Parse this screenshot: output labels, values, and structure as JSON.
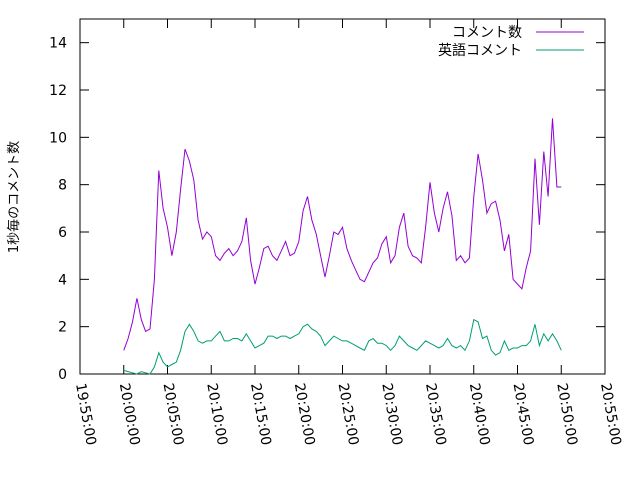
{
  "chart_data": {
    "type": "line",
    "title": "",
    "xlabel": "",
    "ylabel": "1秒毎のコメント数",
    "xlim": [
      "19:55:00",
      "20:55:00"
    ],
    "ylim": [
      0,
      15
    ],
    "grid": false,
    "legend": "top-right",
    "x_ticks": [
      "19:55:00",
      "20:00:00",
      "20:05:00",
      "20:10:00",
      "20:15:00",
      "20:20:00",
      "20:25:00",
      "20:30:00",
      "20:35:00",
      "20:40:00",
      "20:45:00",
      "20:50:00",
      "20:55:00"
    ],
    "y_ticks": [
      "0",
      "2",
      "4",
      "6",
      "8",
      "10",
      "12",
      "14"
    ],
    "series": [
      {
        "name": "コメント数",
        "color": "#9400d3",
        "points": [
          [
            "20:00:00",
            1.0
          ],
          [
            "20:00:30",
            1.5
          ],
          [
            "20:01:00",
            2.2
          ],
          [
            "20:01:30",
            3.2
          ],
          [
            "20:02:00",
            2.3
          ],
          [
            "20:02:30",
            1.8
          ],
          [
            "20:03:00",
            1.9
          ],
          [
            "20:03:30",
            4.0
          ],
          [
            "20:04:00",
            8.6
          ],
          [
            "20:04:30",
            7.0
          ],
          [
            "20:05:00",
            6.2
          ],
          [
            "20:05:30",
            5.0
          ],
          [
            "20:06:00",
            6.0
          ],
          [
            "20:06:30",
            7.8
          ],
          [
            "20:07:00",
            9.5
          ],
          [
            "20:07:30",
            9.0
          ],
          [
            "20:08:00",
            8.2
          ],
          [
            "20:08:30",
            6.5
          ],
          [
            "20:09:00",
            5.7
          ],
          [
            "20:09:30",
            6.0
          ],
          [
            "20:10:00",
            5.8
          ],
          [
            "20:10:30",
            5.0
          ],
          [
            "20:11:00",
            4.8
          ],
          [
            "20:11:30",
            5.1
          ],
          [
            "20:12:00",
            5.3
          ],
          [
            "20:12:30",
            5.0
          ],
          [
            "20:13:00",
            5.2
          ],
          [
            "20:13:30",
            5.6
          ],
          [
            "20:14:00",
            6.6
          ],
          [
            "20:14:30",
            4.8
          ],
          [
            "20:15:00",
            3.8
          ],
          [
            "20:15:30",
            4.5
          ],
          [
            "20:16:00",
            5.3
          ],
          [
            "20:16:30",
            5.4
          ],
          [
            "20:17:00",
            5.0
          ],
          [
            "20:17:30",
            4.8
          ],
          [
            "20:18:00",
            5.2
          ],
          [
            "20:18:30",
            5.6
          ],
          [
            "20:19:00",
            5.0
          ],
          [
            "20:19:30",
            5.1
          ],
          [
            "20:20:00",
            5.6
          ],
          [
            "20:20:30",
            6.9
          ],
          [
            "20:21:00",
            7.5
          ],
          [
            "20:21:30",
            6.5
          ],
          [
            "20:22:00",
            5.9
          ],
          [
            "20:22:30",
            5.0
          ],
          [
            "20:23:00",
            4.1
          ],
          [
            "20:23:30",
            5.0
          ],
          [
            "20:24:00",
            6.0
          ],
          [
            "20:24:30",
            5.9
          ],
          [
            "20:25:00",
            6.2
          ],
          [
            "20:25:30",
            5.3
          ],
          [
            "20:26:00",
            4.8
          ],
          [
            "20:26:30",
            4.4
          ],
          [
            "20:27:00",
            4.0
          ],
          [
            "20:27:30",
            3.9
          ],
          [
            "20:28:00",
            4.3
          ],
          [
            "20:28:30",
            4.7
          ],
          [
            "20:29:00",
            4.9
          ],
          [
            "20:29:30",
            5.5
          ],
          [
            "20:30:00",
            5.8
          ],
          [
            "20:30:30",
            4.7
          ],
          [
            "20:31:00",
            5.0
          ],
          [
            "20:31:30",
            6.2
          ],
          [
            "20:32:00",
            6.8
          ],
          [
            "20:32:30",
            5.4
          ],
          [
            "20:33:00",
            5.0
          ],
          [
            "20:33:30",
            4.9
          ],
          [
            "20:34:00",
            4.7
          ],
          [
            "20:34:30",
            6.2
          ],
          [
            "20:35:00",
            8.1
          ],
          [
            "20:35:30",
            6.8
          ],
          [
            "20:36:00",
            6.0
          ],
          [
            "20:36:30",
            7.0
          ],
          [
            "20:37:00",
            7.7
          ],
          [
            "20:37:30",
            6.7
          ],
          [
            "20:38:00",
            4.8
          ],
          [
            "20:38:30",
            5.0
          ],
          [
            "20:39:00",
            4.7
          ],
          [
            "20:39:30",
            4.9
          ],
          [
            "20:40:00",
            7.5
          ],
          [
            "20:40:30",
            9.3
          ],
          [
            "20:41:00",
            8.2
          ],
          [
            "20:41:30",
            6.8
          ],
          [
            "20:42:00",
            7.2
          ],
          [
            "20:42:30",
            7.3
          ],
          [
            "20:43:00",
            6.5
          ],
          [
            "20:43:30",
            5.2
          ],
          [
            "20:44:00",
            5.9
          ],
          [
            "20:44:30",
            4.0
          ],
          [
            "20:45:00",
            3.8
          ],
          [
            "20:45:30",
            3.6
          ],
          [
            "20:46:00",
            4.5
          ],
          [
            "20:46:30",
            5.2
          ],
          [
            "20:47:00",
            9.1
          ],
          [
            "20:47:30",
            6.3
          ],
          [
            "20:48:00",
            9.4
          ],
          [
            "20:48:30",
            7.5
          ],
          [
            "20:49:00",
            10.8
          ],
          [
            "20:49:30",
            7.9
          ],
          [
            "20:50:00",
            7.9
          ]
        ]
      },
      {
        "name": "英語コメント",
        "color": "#009e73",
        "points": [
          [
            "20:00:00",
            0.15
          ],
          [
            "20:00:30",
            0.1
          ],
          [
            "20:01:00",
            0.05
          ],
          [
            "20:01:30",
            0.0
          ],
          [
            "20:02:00",
            0.1
          ],
          [
            "20:02:30",
            0.05
          ],
          [
            "20:03:00",
            0.0
          ],
          [
            "20:03:30",
            0.3
          ],
          [
            "20:04:00",
            0.9
          ],
          [
            "20:04:30",
            0.5
          ],
          [
            "20:05:00",
            0.3
          ],
          [
            "20:05:30",
            0.4
          ],
          [
            "20:06:00",
            0.5
          ],
          [
            "20:06:30",
            1.0
          ],
          [
            "20:07:00",
            1.8
          ],
          [
            "20:07:30",
            2.1
          ],
          [
            "20:08:00",
            1.8
          ],
          [
            "20:08:30",
            1.4
          ],
          [
            "20:09:00",
            1.3
          ],
          [
            "20:09:30",
            1.4
          ],
          [
            "20:10:00",
            1.4
          ],
          [
            "20:10:30",
            1.6
          ],
          [
            "20:11:00",
            1.8
          ],
          [
            "20:11:30",
            1.4
          ],
          [
            "20:12:00",
            1.4
          ],
          [
            "20:12:30",
            1.5
          ],
          [
            "20:13:00",
            1.5
          ],
          [
            "20:13:30",
            1.4
          ],
          [
            "20:14:00",
            1.7
          ],
          [
            "20:14:30",
            1.4
          ],
          [
            "20:15:00",
            1.1
          ],
          [
            "20:15:30",
            1.2
          ],
          [
            "20:16:00",
            1.3
          ],
          [
            "20:16:30",
            1.6
          ],
          [
            "20:17:00",
            1.6
          ],
          [
            "20:17:30",
            1.5
          ],
          [
            "20:18:00",
            1.6
          ],
          [
            "20:18:30",
            1.6
          ],
          [
            "20:19:00",
            1.5
          ],
          [
            "20:19:30",
            1.6
          ],
          [
            "20:20:00",
            1.7
          ],
          [
            "20:20:30",
            2.0
          ],
          [
            "20:21:00",
            2.1
          ],
          [
            "20:21:30",
            1.9
          ],
          [
            "20:22:00",
            1.8
          ],
          [
            "20:22:30",
            1.6
          ],
          [
            "20:23:00",
            1.2
          ],
          [
            "20:23:30",
            1.4
          ],
          [
            "20:24:00",
            1.6
          ],
          [
            "20:24:30",
            1.5
          ],
          [
            "20:25:00",
            1.4
          ],
          [
            "20:25:30",
            1.4
          ],
          [
            "20:26:00",
            1.3
          ],
          [
            "20:26:30",
            1.2
          ],
          [
            "20:27:00",
            1.1
          ],
          [
            "20:27:30",
            1.0
          ],
          [
            "20:28:00",
            1.4
          ],
          [
            "20:28:30",
            1.5
          ],
          [
            "20:29:00",
            1.3
          ],
          [
            "20:29:30",
            1.3
          ],
          [
            "20:30:00",
            1.2
          ],
          [
            "20:30:30",
            1.0
          ],
          [
            "20:31:00",
            1.2
          ],
          [
            "20:31:30",
            1.6
          ],
          [
            "20:32:00",
            1.4
          ],
          [
            "20:32:30",
            1.2
          ],
          [
            "20:33:00",
            1.1
          ],
          [
            "20:33:30",
            1.0
          ],
          [
            "20:34:00",
            1.2
          ],
          [
            "20:34:30",
            1.4
          ],
          [
            "20:35:00",
            1.3
          ],
          [
            "20:35:30",
            1.2
          ],
          [
            "20:36:00",
            1.1
          ],
          [
            "20:36:30",
            1.2
          ],
          [
            "20:37:00",
            1.5
          ],
          [
            "20:37:30",
            1.2
          ],
          [
            "20:38:00",
            1.1
          ],
          [
            "20:38:30",
            1.2
          ],
          [
            "20:39:00",
            1.0
          ],
          [
            "20:39:30",
            1.4
          ],
          [
            "20:40:00",
            2.3
          ],
          [
            "20:40:30",
            2.2
          ],
          [
            "20:41:00",
            1.5
          ],
          [
            "20:41:30",
            1.6
          ],
          [
            "20:42:00",
            1.0
          ],
          [
            "20:42:30",
            0.8
          ],
          [
            "20:43:00",
            0.9
          ],
          [
            "20:43:30",
            1.4
          ],
          [
            "20:44:00",
            1.0
          ],
          [
            "20:44:30",
            1.1
          ],
          [
            "20:45:00",
            1.1
          ],
          [
            "20:45:30",
            1.2
          ],
          [
            "20:46:00",
            1.2
          ],
          [
            "20:46:30",
            1.4
          ],
          [
            "20:47:00",
            2.1
          ],
          [
            "20:47:30",
            1.2
          ],
          [
            "20:48:00",
            1.7
          ],
          [
            "20:48:30",
            1.4
          ],
          [
            "20:49:00",
            1.7
          ],
          [
            "20:49:30",
            1.4
          ],
          [
            "20:50:00",
            1.0
          ]
        ]
      }
    ]
  }
}
